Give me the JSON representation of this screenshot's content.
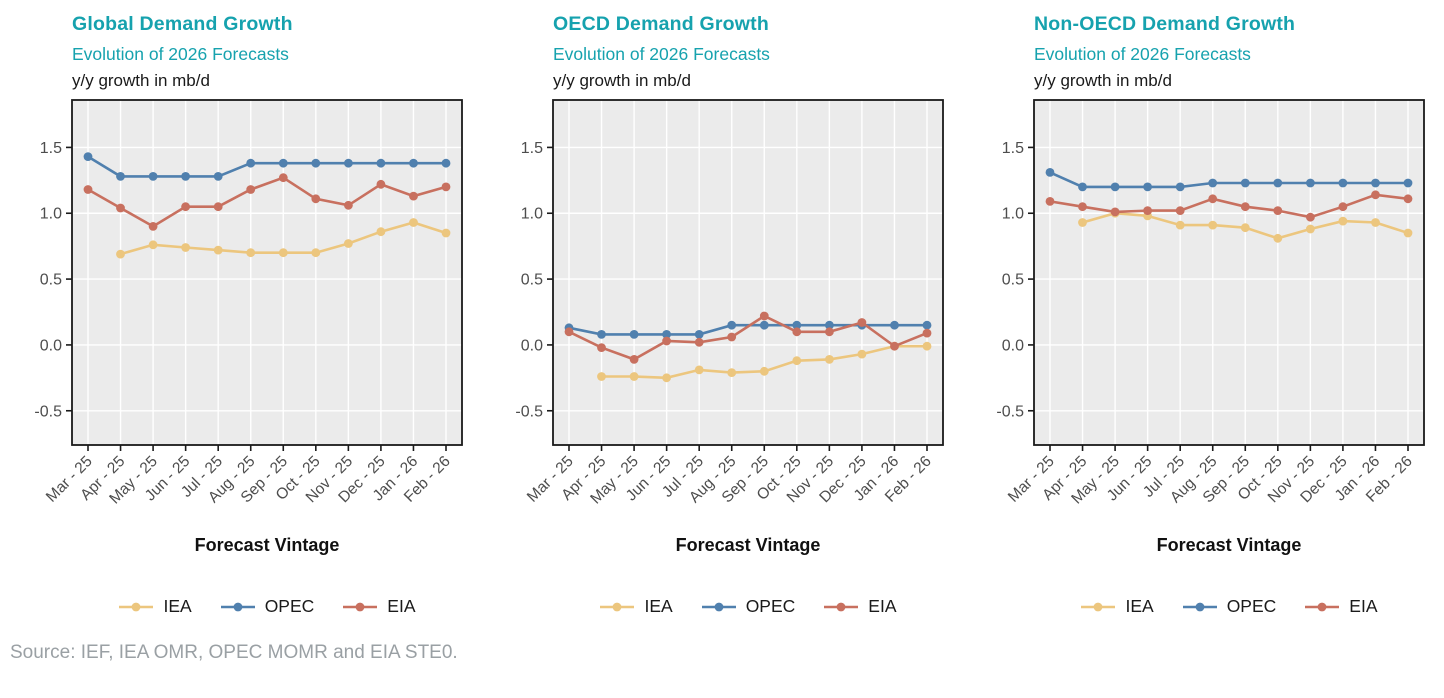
{
  "page": {
    "source_note": "Source: IEF, IEA OMR, OPEC MOMR and EIA STE0."
  },
  "colors": {
    "title_teal": "#16a2ae",
    "axis_text": "#4d4d4d",
    "panel_bg": "#ebebeb",
    "grid": "#ffffff",
    "border": "#1a1a1a",
    "source_gray": "#9aa0a4",
    "iea_yellow": "#ecc67e",
    "opec_blue": "#5080ae",
    "eia_red": "#c8705f"
  },
  "chart_data": [
    {
      "type": "line",
      "title": "Global Demand Growth",
      "subtitle": "Evolution of 2026 Forecasts",
      "unit": "y/y growth in mb/d",
      "xlabel": "Forecast Vintage",
      "legend_position": "bottom",
      "grid": true,
      "categories": [
        "Mar - 25",
        "Apr - 25",
        "May - 25",
        "Jun - 25",
        "Jul - 25",
        "Aug - 25",
        "Sep - 25",
        "Oct - 25",
        "Nov - 25",
        "Dec - 25",
        "Jan - 26",
        "Feb - 26"
      ],
      "yticks": [
        -0.5,
        0.0,
        0.5,
        1.0,
        1.5
      ],
      "ylim": [
        -0.76,
        1.86
      ],
      "series": [
        {
          "name": "IEA",
          "color": "#ecc67e",
          "values": [
            null,
            0.69,
            0.76,
            0.74,
            0.72,
            0.7,
            0.7,
            0.7,
            0.77,
            0.86,
            0.93,
            0.85
          ]
        },
        {
          "name": "OPEC",
          "color": "#5080ae",
          "values": [
            1.43,
            1.28,
            1.28,
            1.28,
            1.28,
            1.38,
            1.38,
            1.38,
            1.38,
            1.38,
            1.38,
            1.38
          ]
        },
        {
          "name": "EIA",
          "color": "#c8705f",
          "values": [
            1.18,
            1.04,
            0.9,
            1.05,
            1.05,
            1.18,
            1.27,
            1.11,
            1.06,
            1.22,
            1.13,
            1.2
          ]
        }
      ]
    },
    {
      "type": "line",
      "title": "OECD Demand Growth",
      "subtitle": "Evolution of 2026 Forecasts",
      "unit": "y/y growth in mb/d",
      "xlabel": "Forecast Vintage",
      "legend_position": "bottom",
      "grid": true,
      "categories": [
        "Mar - 25",
        "Apr - 25",
        "May - 25",
        "Jun - 25",
        "Jul - 25",
        "Aug - 25",
        "Sep - 25",
        "Oct - 25",
        "Nov - 25",
        "Dec - 25",
        "Jan - 26",
        "Feb - 26"
      ],
      "yticks": [
        -0.5,
        0.0,
        0.5,
        1.0,
        1.5
      ],
      "ylim": [
        -0.76,
        1.86
      ],
      "series": [
        {
          "name": "IEA",
          "color": "#ecc67e",
          "values": [
            null,
            -0.24,
            -0.24,
            -0.25,
            -0.19,
            -0.21,
            -0.2,
            -0.12,
            -0.11,
            -0.07,
            -0.01,
            -0.01
          ]
        },
        {
          "name": "OPEC",
          "color": "#5080ae",
          "values": [
            0.13,
            0.08,
            0.08,
            0.08,
            0.08,
            0.15,
            0.15,
            0.15,
            0.15,
            0.15,
            0.15,
            0.15
          ]
        },
        {
          "name": "EIA",
          "color": "#c8705f",
          "values": [
            0.1,
            -0.02,
            -0.11,
            0.03,
            0.02,
            0.06,
            0.22,
            0.1,
            0.1,
            0.17,
            -0.01,
            0.09
          ]
        }
      ]
    },
    {
      "type": "line",
      "title": "Non-OECD Demand Growth",
      "subtitle": "Evolution of 2026 Forecasts",
      "unit": "y/y growth in mb/d",
      "xlabel": "Forecast Vintage",
      "legend_position": "bottom",
      "grid": true,
      "categories": [
        "Mar - 25",
        "Apr - 25",
        "May - 25",
        "Jun - 25",
        "Jul - 25",
        "Aug - 25",
        "Sep - 25",
        "Oct - 25",
        "Nov - 25",
        "Dec - 25",
        "Jan - 26",
        "Feb - 26"
      ],
      "yticks": [
        -0.5,
        0.0,
        0.5,
        1.0,
        1.5
      ],
      "ylim": [
        -0.76,
        1.86
      ],
      "series": [
        {
          "name": "IEA",
          "color": "#ecc67e",
          "values": [
            null,
            0.93,
            1.0,
            0.98,
            0.91,
            0.91,
            0.89,
            0.81,
            0.88,
            0.94,
            0.93,
            0.85
          ]
        },
        {
          "name": "OPEC",
          "color": "#5080ae",
          "values": [
            1.31,
            1.2,
            1.2,
            1.2,
            1.2,
            1.23,
            1.23,
            1.23,
            1.23,
            1.23,
            1.23,
            1.23
          ]
        },
        {
          "name": "EIA",
          "color": "#c8705f",
          "values": [
            1.09,
            1.05,
            1.01,
            1.02,
            1.02,
            1.11,
            1.05,
            1.02,
            0.97,
            1.05,
            1.14,
            1.11
          ]
        }
      ]
    }
  ]
}
